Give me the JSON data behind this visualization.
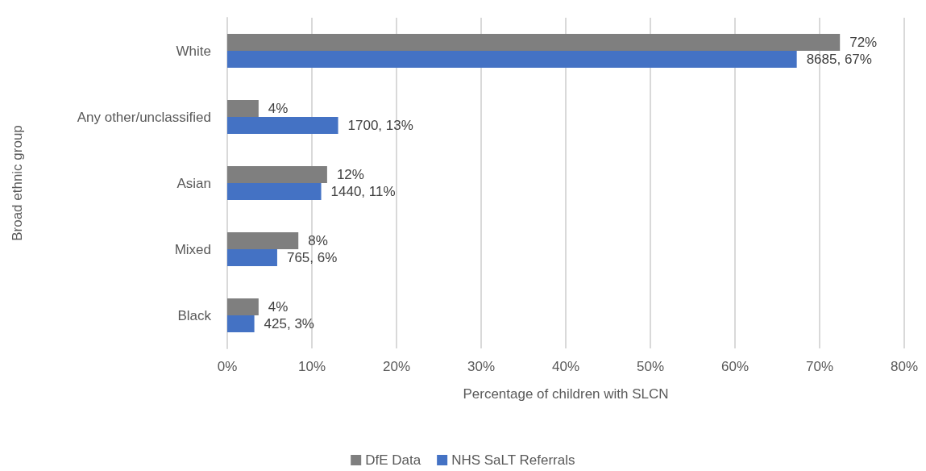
{
  "chart_data": {
    "type": "bar",
    "orientation": "horizontal",
    "xlabel": "Percentage of children with SLCN",
    "ylabel": "Broad ethnic group",
    "categories": [
      "White",
      "Any other/unclassified",
      "Asian",
      "Mixed",
      "Black"
    ],
    "series": [
      {
        "name": "DfE Data",
        "color": "#7f7f7f",
        "values": [
          72.4,
          3.7,
          11.8,
          8.4,
          3.7
        ],
        "value_labels": [
          "72%",
          "4%",
          "12%",
          "8%",
          "4%"
        ]
      },
      {
        "name": "NHS SaLT Referrals",
        "color": "#4472c4",
        "values": [
          67.3,
          13.1,
          11.1,
          5.9,
          3.2
        ],
        "value_labels": [
          "8685, 67%",
          "1700, 13%",
          "1440, 11%",
          "765, 6%",
          "425, 3%"
        ]
      }
    ],
    "xlim": [
      0,
      80
    ],
    "xticks": [
      {
        "value": 0,
        "label": "0%"
      },
      {
        "value": 10,
        "label": "10%"
      },
      {
        "value": 20,
        "label": "20%"
      },
      {
        "value": 30,
        "label": "30%"
      },
      {
        "value": 40,
        "label": "40%"
      },
      {
        "value": 50,
        "label": "50%"
      },
      {
        "value": 60,
        "label": "60%"
      },
      {
        "value": 70,
        "label": "70%"
      },
      {
        "value": 80,
        "label": "80%"
      }
    ],
    "grid": "x",
    "legend": "bottom"
  }
}
